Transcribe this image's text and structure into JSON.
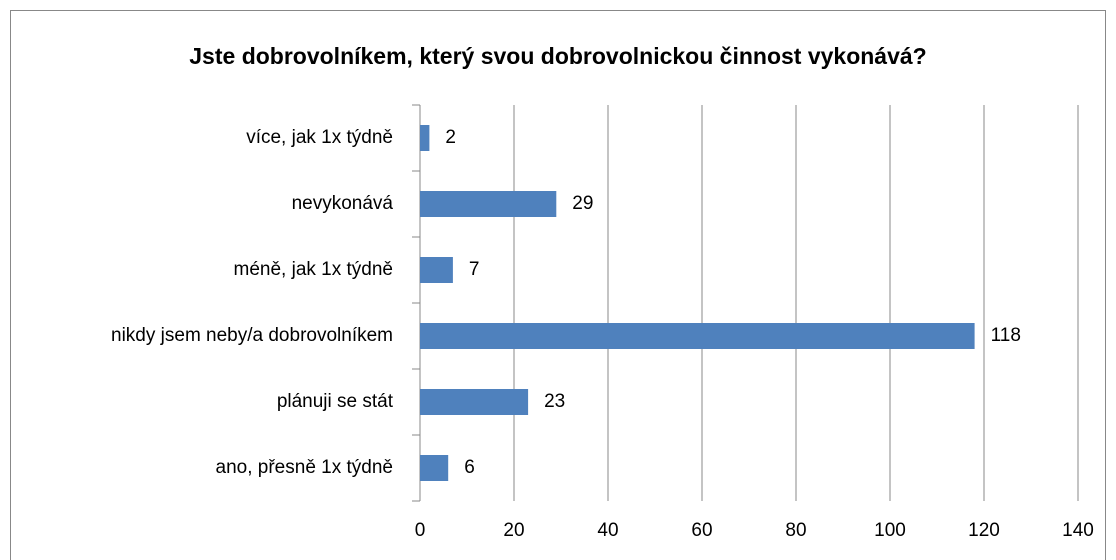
{
  "chart_data": {
    "type": "bar",
    "orientation": "horizontal",
    "title": "Jste dobrovolníkem, který svou dobrovolnickou činnost vykonává?",
    "categories": [
      "více, jak 1x týdně",
      "nevykonává",
      "méně, jak 1x týdně",
      "nikdy jsem neby/a dobrovolníkem",
      "plánuji se stát",
      "ano, přesně 1x týdně"
    ],
    "values": [
      2,
      29,
      7,
      118,
      23,
      6
    ],
    "color": "#4f81bd",
    "xlim": [
      0,
      140
    ],
    "xticks": [
      0,
      20,
      40,
      60,
      80,
      100,
      120,
      140
    ],
    "grid": true
  }
}
